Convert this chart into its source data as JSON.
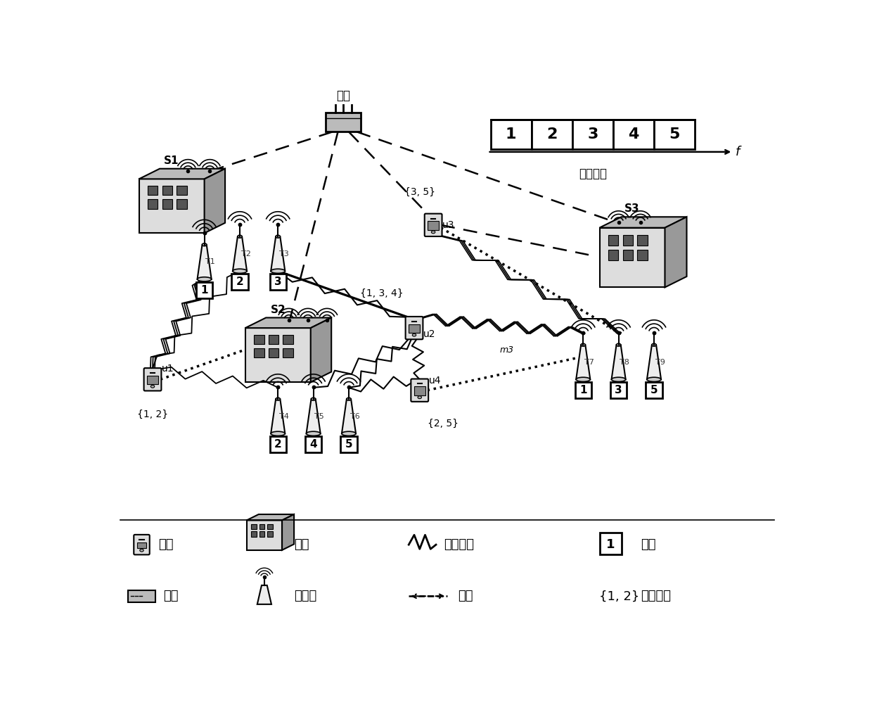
{
  "bg_color": "#ffffff",
  "fig_width": 12.4,
  "fig_height": 10.29,
  "dpi": 100,
  "gateway_label": "网关",
  "channel_label": "可用信道",
  "legend_row1": [
    "用户",
    "台站",
    "通信链路",
    "信道"
  ],
  "legend_row2": [
    "网关",
    "发射机",
    "干扰",
    "信道策略"
  ]
}
